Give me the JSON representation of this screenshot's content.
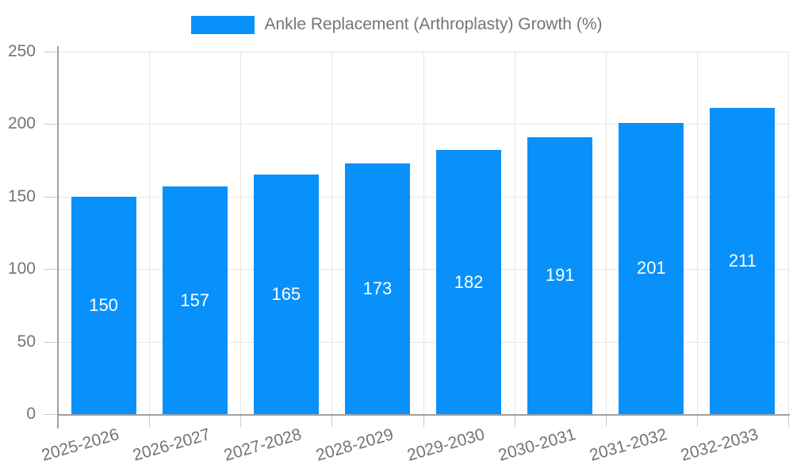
{
  "chart_data": {
    "type": "bar",
    "title": "Ankle Replacement (Arthroplasty) Growth (%)",
    "categories": [
      "2025-2026",
      "2026-2027",
      "2027-2028",
      "2028-2029",
      "2029-2030",
      "2030-2031",
      "2031-2032",
      "2032-2033"
    ],
    "values": [
      150,
      157,
      165,
      173,
      182,
      191,
      201,
      211
    ],
    "series": [
      {
        "name": "Ankle Replacement (Arthroplasty) Growth (%)",
        "values": [
          150,
          157,
          165,
          173,
          182,
          191,
          201,
          211
        ]
      }
    ],
    "xlabel": "",
    "ylabel": "",
    "ylim": [
      0,
      250
    ],
    "yticks": [
      0,
      50,
      100,
      150,
      200,
      250
    ],
    "grid": true,
    "legend_position": "top",
    "bar_value_labels_inside": true,
    "colors": {
      "bar": "#0891fa",
      "bar_label": "#ffffff",
      "axis_text": "#757575",
      "grid": "#e6e6e6",
      "tick": "#c9c9c9",
      "axis_line": "#a0a0a0",
      "background": "#ffffff"
    }
  }
}
